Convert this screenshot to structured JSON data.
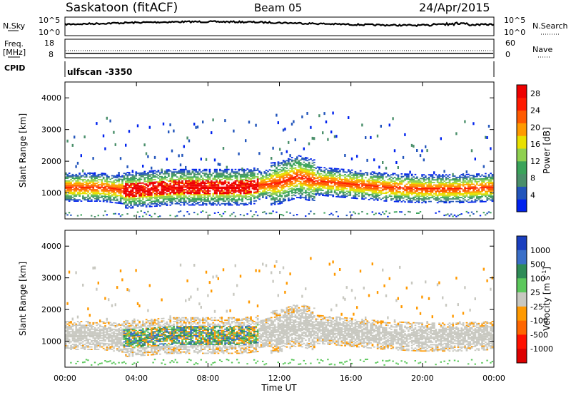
{
  "header": {
    "station": "Saskatoon (fitACF)",
    "beam": "Beam 05",
    "date": "24/Apr/2015"
  },
  "noise_panel": {
    "left_label": "N.Sky",
    "right_label": "N.Search",
    "tick_top": "10^5",
    "tick_bottom": "10^0"
  },
  "freq_panel": {
    "left_label_1": "Freq.",
    "left_label_2": "[MHz]",
    "right_label": "Nave",
    "left_tick_top": "18",
    "left_tick_bottom": "8",
    "right_tick_top": "60",
    "right_tick_bottom": "0"
  },
  "cpid_panel": {
    "label": "CPID",
    "program": "ulfscan -3350"
  },
  "colors": {
    "power": [
      "#0022ee",
      "#2255bb",
      "#4a8f6a",
      "#3aa35a",
      "#8fd050",
      "#e8e000",
      "#ff9a00",
      "#ff5a00",
      "#ff1a00",
      "#ee0000"
    ],
    "velocity": [
      "#1a3fbf",
      "#3a6fc8",
      "#2e8b57",
      "#5cc85c",
      "#c8c8c0",
      "#c8c8c0",
      "#ff9900",
      "#ff6600",
      "#ff1100",
      "#dd0000"
    ]
  },
  "chart_data": [
    {
      "type": "heatmap",
      "name": "power",
      "ylabel": "Slant Range [km]",
      "yticks": [
        1000,
        2000,
        3000,
        4000
      ],
      "ylim": [
        180,
        4500
      ],
      "xlim": [
        0,
        24
      ],
      "colorbar": {
        "label": "Power [dB]",
        "ticks": [
          "4",
          "8",
          "12",
          "16",
          "20",
          "24",
          "28"
        ],
        "range": [
          0,
          30
        ]
      },
      "ionospheric_band": [
        {
          "t": 0,
          "range": 1150
        },
        {
          "t": 2,
          "range": 1150
        },
        {
          "t": 3.5,
          "range": 1050
        },
        {
          "t": 6,
          "range": 1150
        },
        {
          "t": 8,
          "range": 1150
        },
        {
          "t": 10,
          "range": 1150
        },
        {
          "t": 12,
          "range": 1300
        },
        {
          "t": 13,
          "range": 1500
        },
        {
          "t": 14,
          "range": 1350
        },
        {
          "t": 16,
          "range": 1250
        },
        {
          "t": 18,
          "range": 1150
        },
        {
          "t": 20,
          "range": 1100
        },
        {
          "t": 22,
          "range": 1100
        },
        {
          "t": 24,
          "range": 1150
        }
      ],
      "peak_power_region": {
        "t_start": 3.2,
        "t_end": 10.8,
        "range_min": 800,
        "range_max": 1500,
        "power_db": 28
      }
    },
    {
      "type": "heatmap",
      "name": "velocity",
      "ylabel": "Slant Range [km]",
      "yticks": [
        1000,
        2000,
        3000,
        4000
      ],
      "ylim": [
        180,
        4500
      ],
      "xlim": [
        0,
        24
      ],
      "colorbar": {
        "label": "Velocity [m s^-1]",
        "ticks": [
          "1000",
          "500",
          "100",
          "25",
          "-25",
          "-100",
          "-500",
          "-1000"
        ],
        "range": [
          -1000,
          1000
        ]
      },
      "xticks": [
        "00:00",
        "04:00",
        "08:00",
        "12:00",
        "16:00",
        "20:00",
        "00:00"
      ],
      "xlabel": "Time UT"
    }
  ]
}
